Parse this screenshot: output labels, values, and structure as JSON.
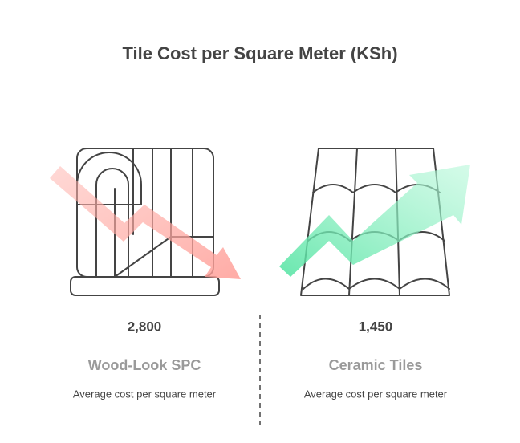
{
  "title": "Tile Cost per Square Meter (KSh)",
  "items": [
    {
      "value": "2,800",
      "name": "Wood-Look SPC",
      "description": "Average cost per square meter"
    },
    {
      "value": "1,450",
      "name": "Ceramic Tiles",
      "description": "Average cost per square meter"
    }
  ]
}
